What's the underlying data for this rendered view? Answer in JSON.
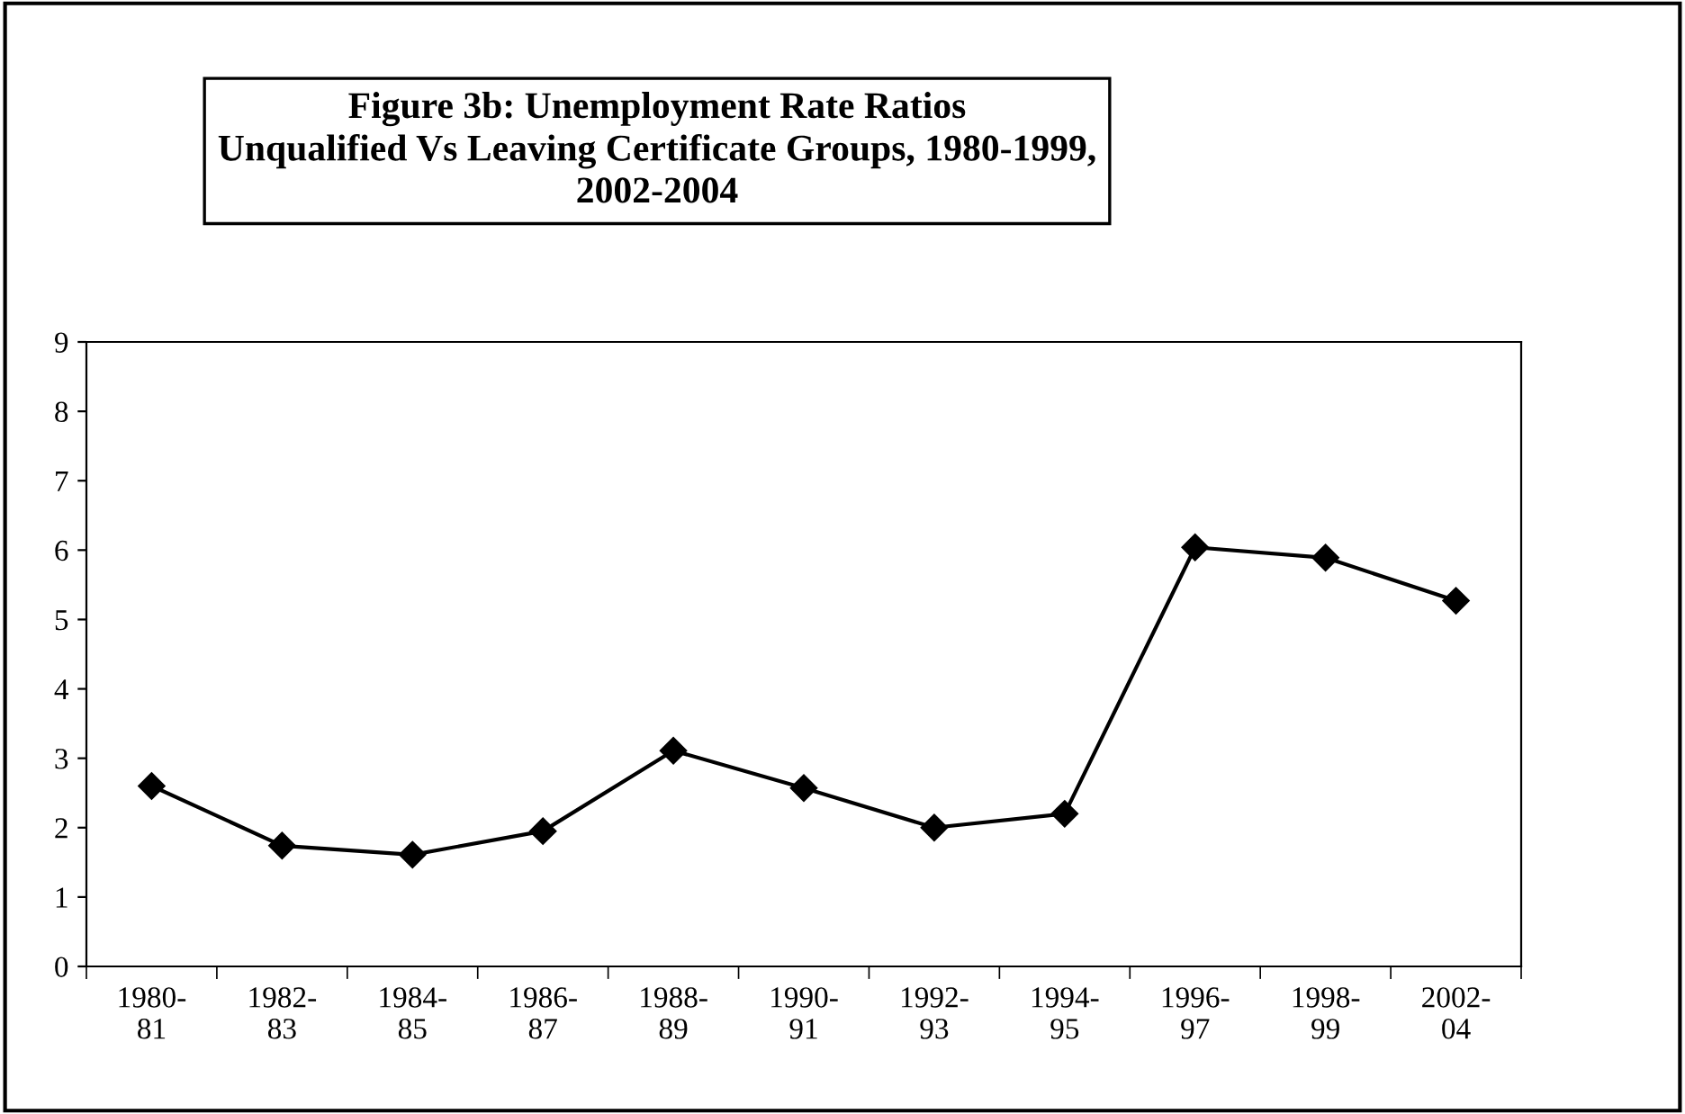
{
  "chart_data": {
    "type": "line",
    "title": "Figure 3b: Unemployment Rate Ratios\nUnqualified Vs Leaving Certificate Groups, 1980-1999,\n2002-2004",
    "categories": [
      "1980-\n81",
      "1982-\n83",
      "1984-\n85",
      "1986-\n87",
      "1988-\n89",
      "1990-\n91",
      "1992-\n93",
      "1994-\n95",
      "1996-\n97",
      "1998-\n99",
      "2002-\n04"
    ],
    "series": [
      {
        "color": "#000000",
        "values": [
          2.6,
          1.74,
          1.61,
          1.95,
          3.11,
          2.57,
          2.0,
          2.2,
          6.04,
          5.89,
          5.27
        ]
      }
    ],
    "ylim": [
      0,
      9
    ],
    "yticks": [
      0,
      1,
      2,
      3,
      4,
      5,
      6,
      7,
      8,
      9
    ],
    "grid": false,
    "legend": false,
    "marker": "diamond",
    "line_style": "solid"
  }
}
